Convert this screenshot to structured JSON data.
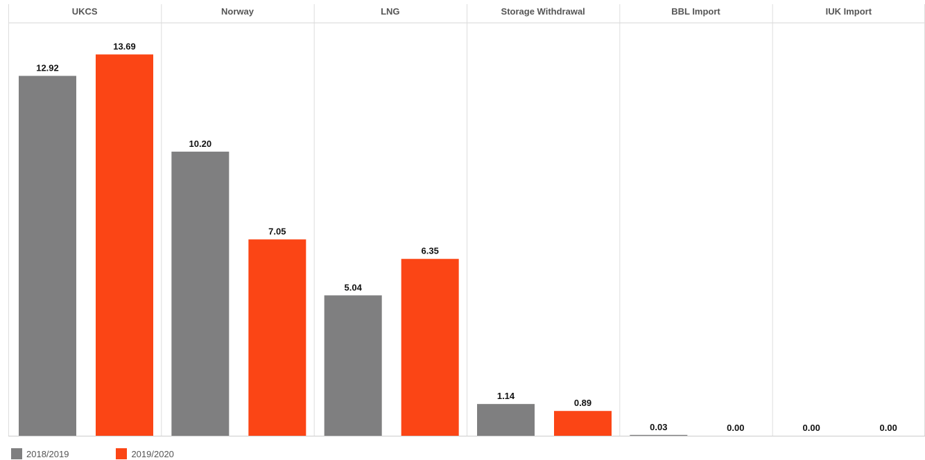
{
  "chart_data": {
    "type": "bar",
    "categories": [
      "UKCS",
      "Norway",
      "LNG",
      "Storage Withdrawal",
      "BBL Import",
      "IUK Import"
    ],
    "series": [
      {
        "name": "2018/2019",
        "values": [
          12.92,
          10.2,
          5.04,
          1.14,
          0.03,
          0.0
        ],
        "labels": [
          "12.92",
          "10.20",
          "5.04",
          "1.14",
          "0.03",
          "0.00"
        ],
        "color": "#7f7f80"
      },
      {
        "name": "2019/2020",
        "values": [
          13.69,
          7.05,
          6.35,
          0.89,
          0.0,
          0.0
        ],
        "labels": [
          "13.69",
          "7.05",
          "6.35",
          "0.89",
          "0.00",
          "0.00"
        ],
        "color": "#fb4515"
      }
    ],
    "ylim": [
      0,
      14.45
    ],
    "grid": false,
    "legend_position": "bottom-left"
  }
}
